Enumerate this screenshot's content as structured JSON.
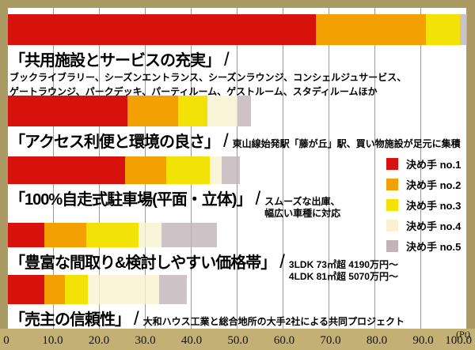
{
  "separator": "/",
  "axis": {
    "unit": "(Pt)",
    "ticks": [
      "0",
      "10.0",
      "20.0",
      "30.0",
      "40.0",
      "50.0",
      "60.0",
      "70.0",
      "80.0",
      "90.0",
      "100.0"
    ]
  },
  "legend": {
    "items": [
      {
        "label": "決め手 no.1",
        "color": "#d7110b"
      },
      {
        "label": "決め手 no.2",
        "color": "#f3a002"
      },
      {
        "label": "決め手 no.3",
        "color": "#f2e205"
      },
      {
        "label": "決め手 no.4",
        "color": "#f8f2d0"
      },
      {
        "label": "決め手 no.5",
        "color": "#c1b3b7"
      }
    ]
  },
  "chart_data": {
    "type": "bar",
    "orientation": "horizontal-stacked",
    "unit": "Pt",
    "xlim": [
      0,
      100
    ],
    "grid": "vertical, every 10 Pt",
    "legend_position": "middle-right",
    "series_names": [
      "決め手 no.1",
      "決め手 no.2",
      "決め手 no.3",
      "決め手 no.4",
      "決め手 no.5"
    ],
    "bars": [
      {
        "title": "「共用施設とサービスの充実」",
        "desc_lines": [
          "ブックライブラリー、シーズンエントランス、シーズンラウンジ、コンシェルジュサービス、",
          "ゲートラウンジ、パークデッキ、パーティルーム、ゲストルーム、スタディルームほか"
        ],
        "values": [
          67,
          24,
          7.5,
          0,
          1.5
        ],
        "total": 100
      },
      {
        "title": "「アクセス利便と環境の良さ」",
        "desc_lines": [
          "東山線始発駅「藤が丘」駅、買い物施設が足元に集積"
        ],
        "values": [
          26,
          11,
          6.5,
          6.5,
          3
        ],
        "total": 53
      },
      {
        "title": "「100%自走式駐車場(平面・立体)」",
        "desc_lines": [
          "スムーズな出庫、",
          "幅広い車種に対応"
        ],
        "values": [
          25.5,
          9,
          9.5,
          2.5,
          4
        ],
        "total": 50.5
      },
      {
        "title": "「豊富な間取り&検討しやすい価格帯」",
        "desc_lines": [
          "3LDK 73㎡超 4190万円〜",
          "4LDK 81㎡超 5070万円〜"
        ],
        "values": [
          8,
          9,
          11.5,
          5,
          12
        ],
        "total": 45.5
      },
      {
        "title": "「売主の信頼性」",
        "desc_lines": [
          "大和ハウス工業と総合地所の大手2社による共同プロジェクト"
        ],
        "values": [
          8,
          4.5,
          5,
          15.5,
          6
        ],
        "total": 39
      }
    ]
  }
}
